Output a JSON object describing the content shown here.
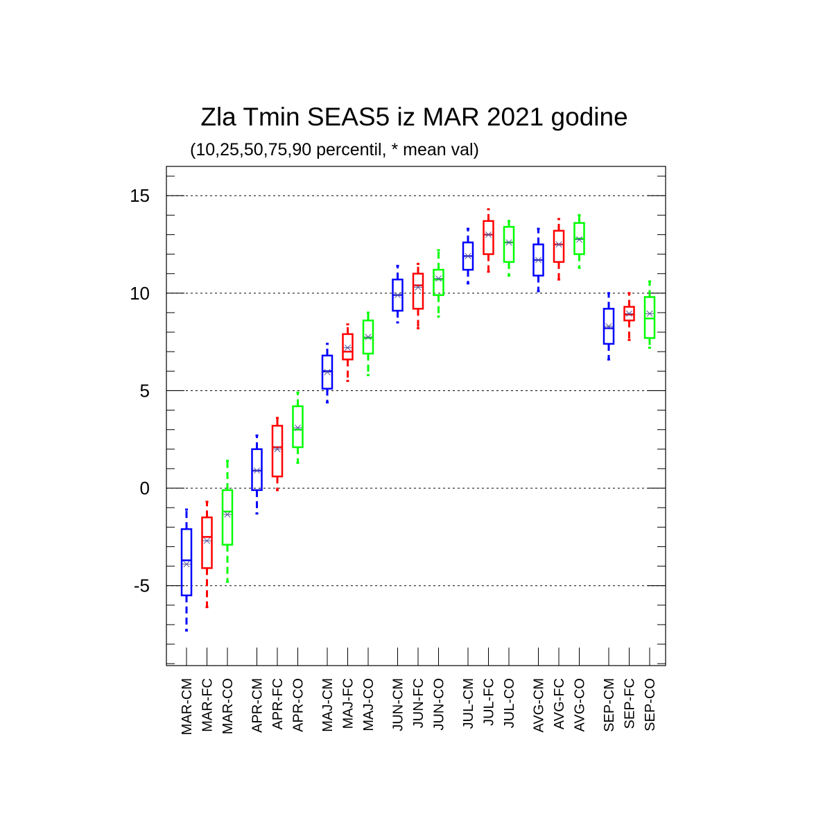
{
  "chart_data": {
    "type": "box",
    "title": "Zla Tmin SEAS5 iz MAR 2021 godine",
    "subtitle": "(10,25,50,75,90 percentil, * mean val)",
    "xlabel": "",
    "ylabel": "",
    "ylim": [
      -9.1,
      16.5
    ],
    "yticks": [
      -5,
      0,
      5,
      10,
      15
    ],
    "ytick_labels": [
      "-5",
      "0",
      "5",
      "10",
      "15"
    ],
    "grid": "horizontal dashed at major ticks",
    "colors": {
      "CM": "#0000ff",
      "FC": "#ff0000",
      "CO": "#00ff00",
      "mean_marker": "#555599"
    },
    "groups": [
      {
        "boxes": [
          {
            "label": "MAR-CM",
            "kind": "CM",
            "p10": -7.3,
            "p25": -5.5,
            "p50": -3.7,
            "p75": -2.1,
            "p90": -1.1,
            "mean": -3.9
          },
          {
            "label": "MAR-FC",
            "kind": "FC",
            "p10": -6.1,
            "p25": -4.1,
            "p50": -2.5,
            "p75": -1.5,
            "p90": -0.7,
            "mean": -2.7
          },
          {
            "label": "MAR-CO",
            "kind": "CO",
            "p10": -4.8,
            "p25": -2.9,
            "p50": -1.2,
            "p75": -0.1,
            "p90": 1.4,
            "mean": -1.35
          }
        ]
      },
      {
        "boxes": [
          {
            "label": "APR-CM",
            "kind": "CM",
            "p10": -1.3,
            "p25": -0.1,
            "p50": 0.9,
            "p75": 2.0,
            "p90": 2.7,
            "mean": 0.9
          },
          {
            "label": "APR-FC",
            "kind": "FC",
            "p10": -0.1,
            "p25": 0.6,
            "p50": 2.1,
            "p75": 3.2,
            "p90": 3.6,
            "mean": 2.0
          },
          {
            "label": "APR-CO",
            "kind": "CO",
            "p10": 1.3,
            "p25": 2.1,
            "p50": 3.0,
            "p75": 4.2,
            "p90": 4.9,
            "mean": 3.1
          }
        ]
      },
      {
        "boxes": [
          {
            "label": "MAJ-CM",
            "kind": "CM",
            "p10": 4.4,
            "p25": 5.1,
            "p50": 6.0,
            "p75": 6.8,
            "p90": 7.4,
            "mean": 5.95
          },
          {
            "label": "MAJ-FC",
            "kind": "FC",
            "p10": 5.5,
            "p25": 6.6,
            "p50": 7.0,
            "p75": 7.9,
            "p90": 8.4,
            "mean": 7.2
          },
          {
            "label": "MAJ-CO",
            "kind": "CO",
            "p10": 5.8,
            "p25": 6.9,
            "p50": 7.7,
            "p75": 8.6,
            "p90": 9.0,
            "mean": 7.75
          }
        ]
      },
      {
        "boxes": [
          {
            "label": "JUN-CM",
            "kind": "CM",
            "p10": 8.5,
            "p25": 9.1,
            "p50": 9.9,
            "p75": 10.7,
            "p90": 11.4,
            "mean": 9.9
          },
          {
            "label": "JUN-FC",
            "kind": "FC",
            "p10": 8.2,
            "p25": 9.2,
            "p50": 10.4,
            "p75": 11.0,
            "p90": 11.5,
            "mean": 10.3
          },
          {
            "label": "JUN-CO",
            "kind": "CO",
            "p10": 8.8,
            "p25": 9.9,
            "p50": 10.7,
            "p75": 11.2,
            "p90": 12.2,
            "mean": 10.75
          }
        ]
      },
      {
        "boxes": [
          {
            "label": "JUL-CM",
            "kind": "CM",
            "p10": 10.5,
            "p25": 11.2,
            "p50": 11.9,
            "p75": 12.6,
            "p90": 13.3,
            "mean": 11.9
          },
          {
            "label": "JUL-FC",
            "kind": "FC",
            "p10": 11.1,
            "p25": 12.0,
            "p50": 13.0,
            "p75": 13.7,
            "p90": 14.3,
            "mean": 13.0
          },
          {
            "label": "JUL-CO",
            "kind": "CO",
            "p10": 10.9,
            "p25": 11.6,
            "p50": 12.6,
            "p75": 13.4,
            "p90": 13.7,
            "mean": 12.6
          }
        ]
      },
      {
        "boxes": [
          {
            "label": "AVG-CM",
            "kind": "CM",
            "p10": 10.1,
            "p25": 10.9,
            "p50": 11.7,
            "p75": 12.5,
            "p90": 13.3,
            "mean": 11.7
          },
          {
            "label": "AVG-FC",
            "kind": "FC",
            "p10": 10.7,
            "p25": 11.6,
            "p50": 12.5,
            "p75": 13.2,
            "p90": 13.8,
            "mean": 12.5
          },
          {
            "label": "AVG-CO",
            "kind": "CO",
            "p10": 11.3,
            "p25": 12.0,
            "p50": 12.8,
            "p75": 13.6,
            "p90": 14.0,
            "mean": 12.75
          }
        ]
      },
      {
        "boxes": [
          {
            "label": "SEP-CM",
            "kind": "CM",
            "p10": 6.6,
            "p25": 7.4,
            "p50": 8.2,
            "p75": 9.2,
            "p90": 10.0,
            "mean": 8.3
          },
          {
            "label": "SEP-FC",
            "kind": "FC",
            "p10": 7.6,
            "p25": 8.6,
            "p50": 8.9,
            "p75": 9.3,
            "p90": 10.0,
            "mean": 8.95
          },
          {
            "label": "SEP-CO",
            "kind": "CO",
            "p10": 7.2,
            "p25": 7.7,
            "p50": 8.7,
            "p75": 9.8,
            "p90": 10.6,
            "mean": 8.95
          }
        ]
      }
    ]
  }
}
